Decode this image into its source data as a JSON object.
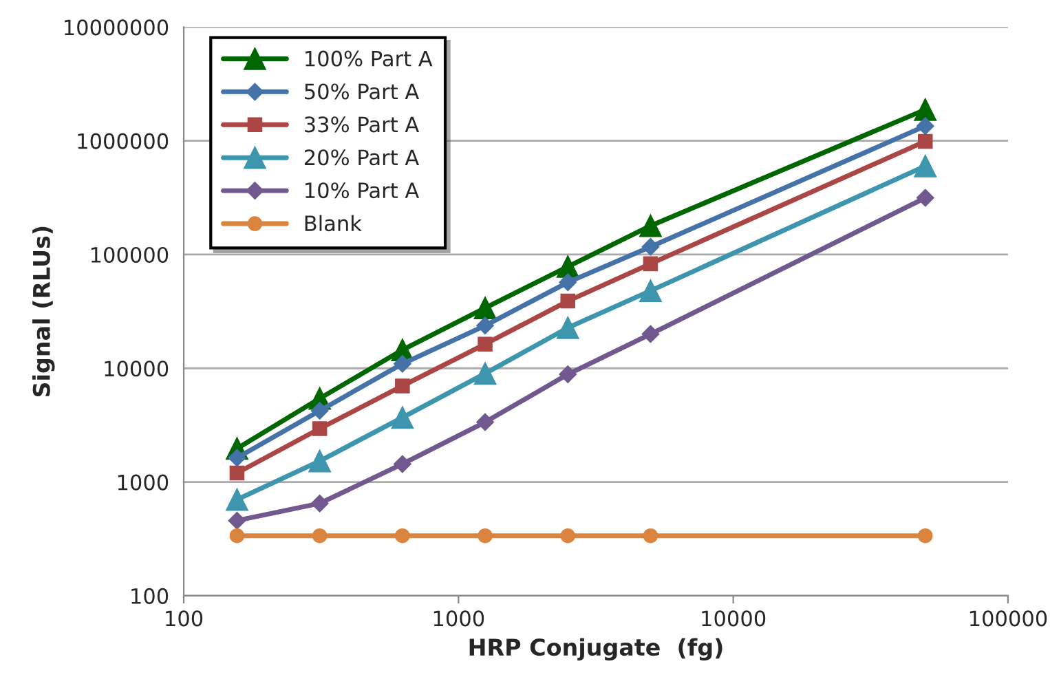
{
  "chart_data": {
    "type": "line",
    "xlabel": "HRP Conjugate  (fg)",
    "ylabel": "Signal (RLUs)",
    "log": "xy",
    "xlim": [
      100,
      100000
    ],
    "xticks": [
      100,
      1000,
      10000,
      100000
    ],
    "ylim": [
      100,
      10000000
    ],
    "yticks": [
      100,
      1000,
      10000,
      100000,
      1000000,
      10000000
    ],
    "grid": "y",
    "legend": "top left",
    "line_style": "solid",
    "x": [
      156.25,
      312.5,
      625,
      1250,
      2500,
      5000,
      50000
    ],
    "series": [
      {
        "name": "100% Part A",
        "color": "#006600",
        "marker": "triangle",
        "values": [
          1970,
          5430,
          14500,
          33900,
          78300,
          179000,
          1880000
        ]
      },
      {
        "name": "50% Part A",
        "color": "#4572a7",
        "marker": "diamond",
        "values": [
          1630,
          4240,
          10950,
          23700,
          57000,
          117000,
          1350000
        ]
      },
      {
        "name": "33% Part A",
        "color": "#aa4643",
        "marker": "square",
        "values": [
          1200,
          2950,
          7000,
          16300,
          39000,
          83000,
          990000
        ]
      },
      {
        "name": "20% Part A",
        "color": "#3d96ae",
        "marker": "triangle",
        "values": [
          700,
          1530,
          3690,
          9000,
          22700,
          48000,
          600000
        ]
      },
      {
        "name": "10% Part A",
        "color": "#71588f",
        "marker": "diamond",
        "values": [
          458,
          649,
          1440,
          3360,
          8850,
          20000,
          315000
        ]
      },
      {
        "name": "Blank",
        "color": "#db843d",
        "marker": "circle",
        "values": [
          337,
          337,
          337,
          337,
          337,
          337,
          337
        ]
      }
    ]
  }
}
